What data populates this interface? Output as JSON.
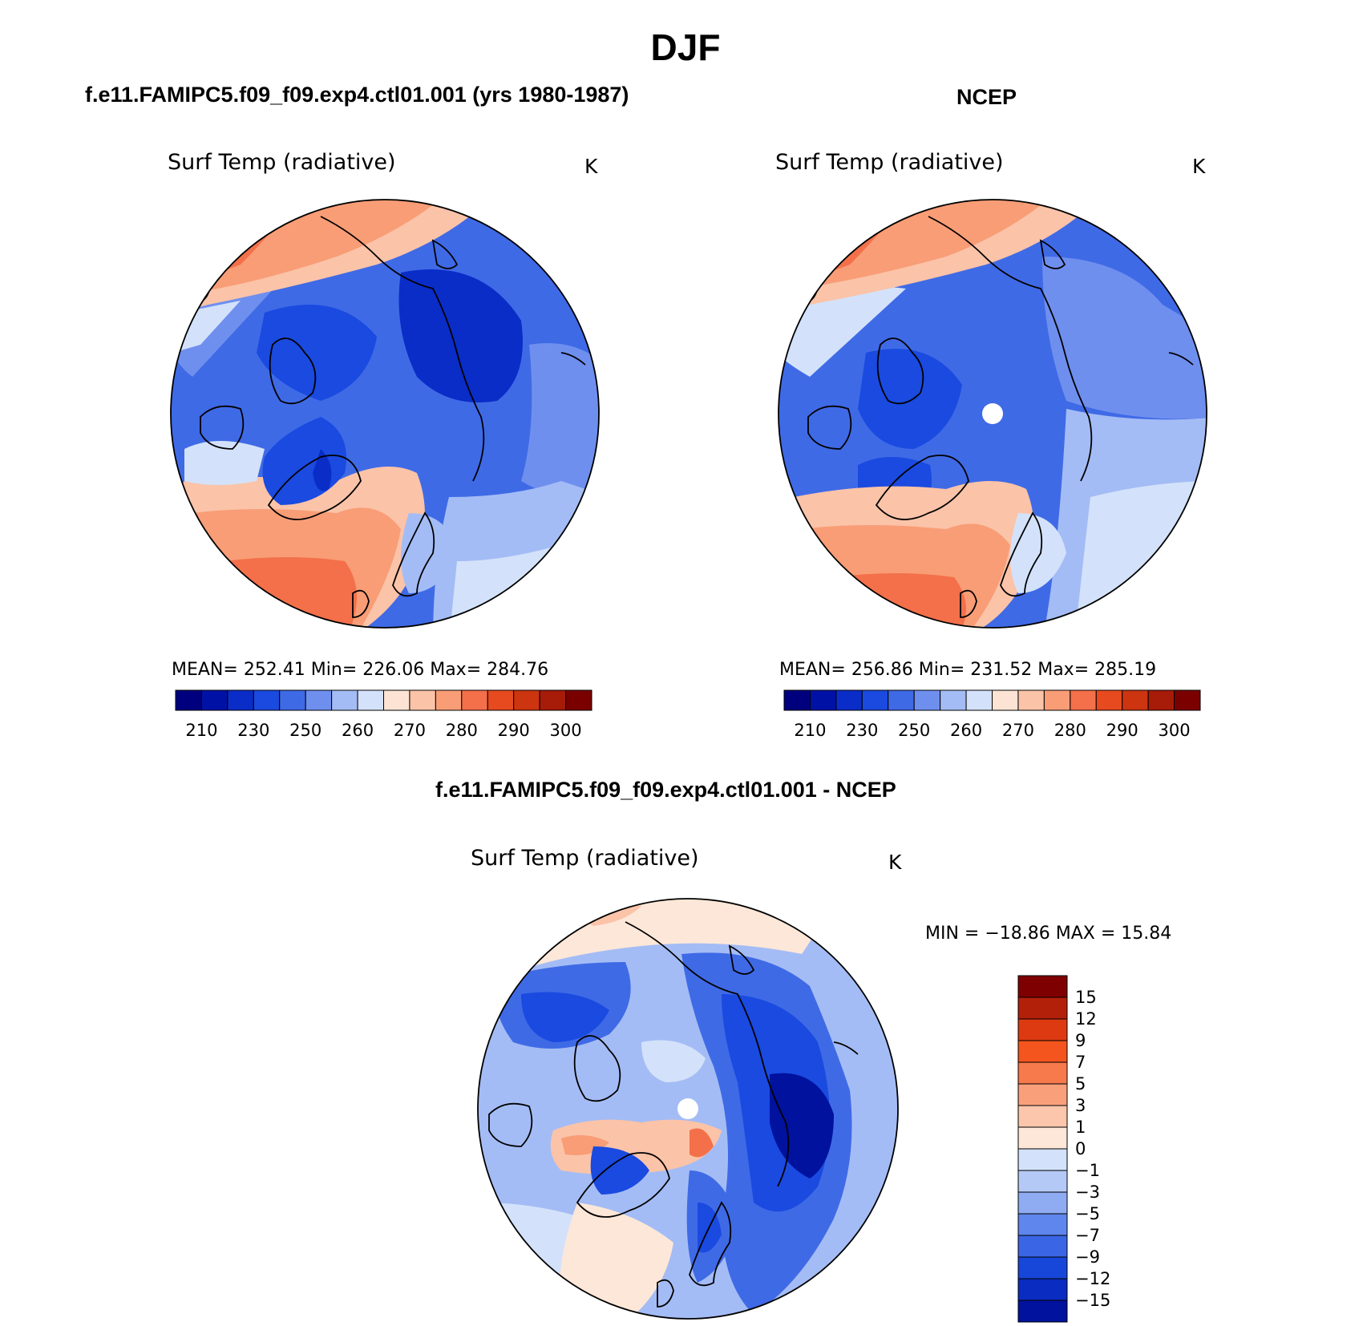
{
  "page_title": "DJF",
  "panels": [
    {
      "id": "model",
      "header": "f.e11.FAMIPC5.f09_f09.exp4.ctl01.001 (yrs 1980-1987)",
      "variable": "Surf Temp (radiative)",
      "units": "K",
      "stats": "MEAN= 252.41   Min= 226.06   Max= 284.76",
      "pole_marker": false
    },
    {
      "id": "obs",
      "header": "NCEP",
      "variable": "Surf Temp (radiative)",
      "units": "K",
      "stats": "MEAN= 256.86   Min= 231.52   Max= 285.19",
      "pole_marker": true
    },
    {
      "id": "diff",
      "header": "f.e11.FAMIPC5.f09_f09.exp4.ctl01.001 - NCEP",
      "variable": "Surf Temp (radiative)",
      "units": "K",
      "stats": "MIN = −18.86 MAX =   15.84",
      "pole_marker": true
    }
  ],
  "abs_colorbar": {
    "labels": [
      "210",
      "230",
      "250",
      "260",
      "270",
      "280",
      "290",
      "300"
    ],
    "colors": [
      "#00007f",
      "#0012a6",
      "#0a2dc8",
      "#1a4ae0",
      "#3f6ae6",
      "#6f8fef",
      "#a4bcf5",
      "#d3e2fa",
      "#fde3d3",
      "#fbc3a8",
      "#f89d76",
      "#f3704a",
      "#e64a1e",
      "#cc3510",
      "#a61c08",
      "#7a0000"
    ]
  },
  "diff_colorbar": {
    "labels": [
      "15",
      "12",
      "9",
      "7",
      "5",
      "3",
      "1",
      "0",
      "−1",
      "−3",
      "−5",
      "−7",
      "−9",
      "−12",
      "−15"
    ],
    "colors": [
      "#7f0000",
      "#b3200a",
      "#de3a12",
      "#f4551e",
      "#f77a4c",
      "#f9a07b",
      "#fbc6ab",
      "#fde7d8",
      "#d3e2fa",
      "#b5c9f6",
      "#8fabf2",
      "#5f86ec",
      "#3a66e6",
      "#1747d9",
      "#0a2cc0",
      "#00129e"
    ]
  },
  "map_colors": {
    "warm_deep": "#f3704a",
    "warm_mid": "#f89d76",
    "warm_light": "#fbc3a8",
    "neutral": "#fde7d8",
    "cool_pale": "#d3e2fa",
    "cool_light": "#a4bcf5",
    "cool_mid": "#6f8fef",
    "cool_main": "#3f6ae6",
    "cool_deep": "#1a4ae0",
    "cool_deepest": "#0a2dc8",
    "diff_deepest": "#00129e"
  }
}
